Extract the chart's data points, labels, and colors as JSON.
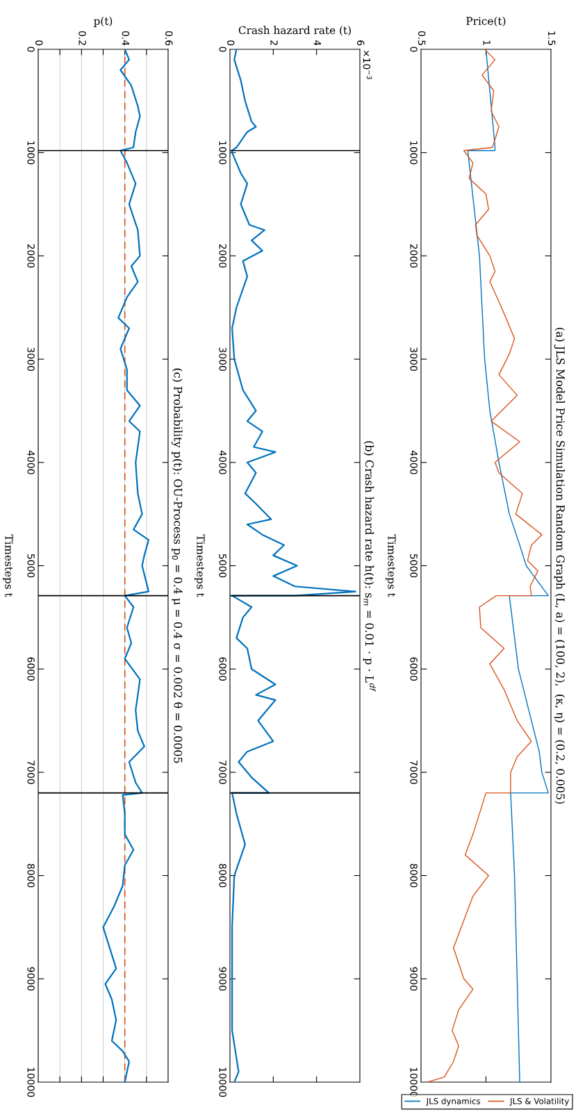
{
  "chart_data": [
    {
      "type": "line",
      "title": "(a) JLS Model Price Simulation Random Graph (L, a) = (100, 2),  (κ, η) = (0.2, 0.005)",
      "xlabel": "Price(t)",
      "ylabel": "Timesteps t",
      "xlim": [
        0.5,
        1.5
      ],
      "xticks": [
        0.5,
        1,
        1.5
      ],
      "ylim": [
        10000,
        0
      ],
      "yticks": [
        0,
        1000,
        2000,
        3000,
        4000,
        5000,
        6000,
        7000,
        8000,
        9000,
        10000
      ],
      "legend": "bottom right",
      "grid": false,
      "series": [
        {
          "name": "JLS dynamics",
          "color": "#0072bd",
          "values": [
            0,
            950,
            980,
            980,
            2000,
            3000,
            3500,
            4000,
            4500,
            4800,
            5000,
            5290,
            5290,
            6000,
            6500,
            6800,
            7000,
            7200,
            7200,
            8000,
            9000,
            10000
          ],
          "x": [
            1.0,
            1.07,
            1.07,
            0.86,
            0.95,
            0.99,
            1.03,
            1.1,
            1.18,
            1.26,
            1.31,
            1.48,
            1.18,
            1.25,
            1.35,
            1.41,
            1.43,
            1.48,
            1.19,
            1.22,
            1.24,
            1.26
          ]
        },
        {
          "name": "JLS & Volatility",
          "color": "#d95319",
          "values": [
            0,
            100,
            250,
            400,
            600,
            750,
            950,
            980,
            1100,
            1250,
            1400,
            1550,
            1700,
            1800,
            2000,
            2150,
            2250,
            2500,
            2800,
            2950,
            3150,
            3350,
            3600,
            3800,
            4000,
            4100,
            4300,
            4500,
            4700,
            4800,
            4950,
            5050,
            5200,
            5290,
            5290,
            5400,
            5600,
            5800,
            5950,
            6200,
            6500,
            6700,
            6850,
            7000,
            7200,
            7200,
            7400,
            7600,
            7800,
            8000,
            8200,
            8400,
            8700,
            9000,
            9100,
            9300,
            9500,
            9650,
            9800,
            9950,
            10000
          ],
          "x": [
            0.99,
            1.07,
            0.97,
            1.06,
            1.04,
            1.1,
            1.05,
            0.83,
            0.9,
            0.87,
            1.0,
            1.02,
            0.92,
            0.93,
            1.03,
            1.07,
            1.03,
            1.12,
            1.22,
            1.18,
            1.1,
            1.24,
            1.04,
            1.26,
            1.07,
            1.1,
            1.28,
            1.23,
            1.43,
            1.35,
            1.32,
            1.4,
            1.34,
            1.35,
            1.08,
            0.95,
            0.96,
            1.14,
            1.03,
            1.14,
            1.24,
            1.35,
            1.24,
            1.19,
            1.19,
            1.0,
            0.95,
            0.9,
            0.84,
            1.02,
            0.9,
            0.84,
            0.75,
            0.83,
            0.9,
            0.79,
            0.74,
            0.79,
            0.75,
            0.68,
            0.55
          ]
        }
      ]
    },
    {
      "type": "line",
      "title": "(b) Crash hazard rate h(t): s$_{m}$ = 0.01 · p · L$^{df}$",
      "xlabel": "Crash hazard rate (t)",
      "ylabel": "Timesteps t",
      "annotations": [
        "×10$^{−3}$"
      ],
      "xlim": [
        0,
        6
      ],
      "xticks": [
        0,
        2,
        4,
        6
      ],
      "ylim": [
        10000,
        0
      ],
      "yticks": [
        0,
        1000,
        2000,
        3000,
        4000,
        5000,
        6000,
        7000,
        8000,
        9000,
        10000
      ],
      "grid": false,
      "ref_lines": [
        {
          "axis": "y",
          "value": 980,
          "color": "#000000"
        },
        {
          "axis": "y",
          "value": 5290,
          "color": "#000000"
        },
        {
          "axis": "y",
          "value": 7200,
          "color": "#000000"
        }
      ],
      "series": [
        {
          "color": "#0072bd",
          "values": [
            0,
            100,
            300,
            500,
            700,
            750,
            800,
            950,
            980,
            1000,
            1200,
            1300,
            1500,
            1700,
            1750,
            1850,
            1950,
            2050,
            2200,
            2500,
            2700,
            3000,
            3300,
            3500,
            3600,
            3700,
            3850,
            3900,
            4000,
            4100,
            4300,
            4400,
            4550,
            4600,
            4700,
            4800,
            4900,
            5000,
            5100,
            5200,
            5250,
            5290,
            5290,
            5400,
            5500,
            5700,
            5800,
            6000,
            6150,
            6250,
            6300,
            6500,
            6700,
            6800,
            6900,
            7050,
            7200,
            7200,
            7400,
            7700,
            8000,
            8500,
            9000,
            9500,
            9900,
            10000
          ],
          "x": [
            0.3,
            0.2,
            0.5,
            0.7,
            1.0,
            1.2,
            0.8,
            0.3,
            0.1,
            0.1,
            0.5,
            0.8,
            0.5,
            0.9,
            1.6,
            1.0,
            1.5,
            0.6,
            0.8,
            0.3,
            0.1,
            0.2,
            0.6,
            1.2,
            0.8,
            1.5,
            1.1,
            2.1,
            0.8,
            1.2,
            0.7,
            1.2,
            1.9,
            0.8,
            1.5,
            2.5,
            2.0,
            3.1,
            2.0,
            3.0,
            5.8,
            3.0,
            0.1,
            1.0,
            0.6,
            0.3,
            0.8,
            1.0,
            2.1,
            1.2,
            2.1,
            1.3,
            2.0,
            0.8,
            0.4,
            1.0,
            1.8,
            0.1,
            0.3,
            0.7,
            0.2,
            0.1,
            0.1,
            0.1,
            0.4,
            0.2
          ]
        }
      ]
    },
    {
      "type": "line",
      "title": "(c) Probability p(t): OU-Process p$_{0}$ = 0.4 μ = 0.4 σ = 0.002 θ = 0.0005",
      "xlabel": "p(t)",
      "ylabel": "Timesteps t",
      "xlim": [
        0,
        0.6
      ],
      "xticks": [
        0,
        {
          "value": 0.1,
          "label": null
        },
        0.2,
        {
          "value": 0.3,
          "label": null
        },
        0.4,
        {
          "value": 0.5,
          "label": null
        },
        0.6
      ],
      "ylim": [
        10000,
        0
      ],
      "yticks": [
        0,
        1000,
        2000,
        3000,
        4000,
        5000,
        6000,
        7000,
        8000,
        9000,
        10000
      ],
      "grid": "x",
      "ref_lines": [
        {
          "axis": "y",
          "value": 980,
          "color": "#000000"
        },
        {
          "axis": "y",
          "value": 5290,
          "color": "#000000"
        },
        {
          "axis": "y",
          "value": 7200,
          "color": "#000000"
        },
        {
          "axis": "x",
          "value": 0.4,
          "color": "#d95319",
          "line_style": "dashed"
        }
      ],
      "series": [
        {
          "color": "#0072bd",
          "values": [
            0,
            100,
            200,
            350,
            550,
            650,
            800,
            950,
            980,
            1100,
            1300,
            1500,
            1750,
            2000,
            2100,
            2250,
            2400,
            2600,
            2700,
            2900,
            3100,
            3300,
            3450,
            3600,
            3700,
            4000,
            4300,
            4500,
            4650,
            4750,
            4900,
            5000,
            5250,
            5290,
            5400,
            5600,
            5750,
            5900,
            6100,
            6400,
            6600,
            6750,
            6900,
            7100,
            7200,
            7220,
            7400,
            7600,
            7750,
            7900,
            8100,
            8300,
            8500,
            8700,
            8900,
            9050,
            9200,
            9400,
            9600,
            9700,
            9800,
            10000
          ],
          "x": [
            0.4,
            0.42,
            0.38,
            0.43,
            0.46,
            0.47,
            0.45,
            0.44,
            0.38,
            0.41,
            0.45,
            0.42,
            0.46,
            0.47,
            0.43,
            0.46,
            0.41,
            0.37,
            0.42,
            0.38,
            0.41,
            0.41,
            0.47,
            0.42,
            0.47,
            0.45,
            0.46,
            0.48,
            0.44,
            0.51,
            0.49,
            0.48,
            0.51,
            0.4,
            0.44,
            0.41,
            0.43,
            0.4,
            0.47,
            0.45,
            0.46,
            0.49,
            0.42,
            0.45,
            0.48,
            0.39,
            0.4,
            0.4,
            0.44,
            0.4,
            0.39,
            0.35,
            0.3,
            0.33,
            0.36,
            0.31,
            0.34,
            0.36,
            0.34,
            0.39,
            0.42,
            0.4
          ]
        }
      ]
    }
  ]
}
